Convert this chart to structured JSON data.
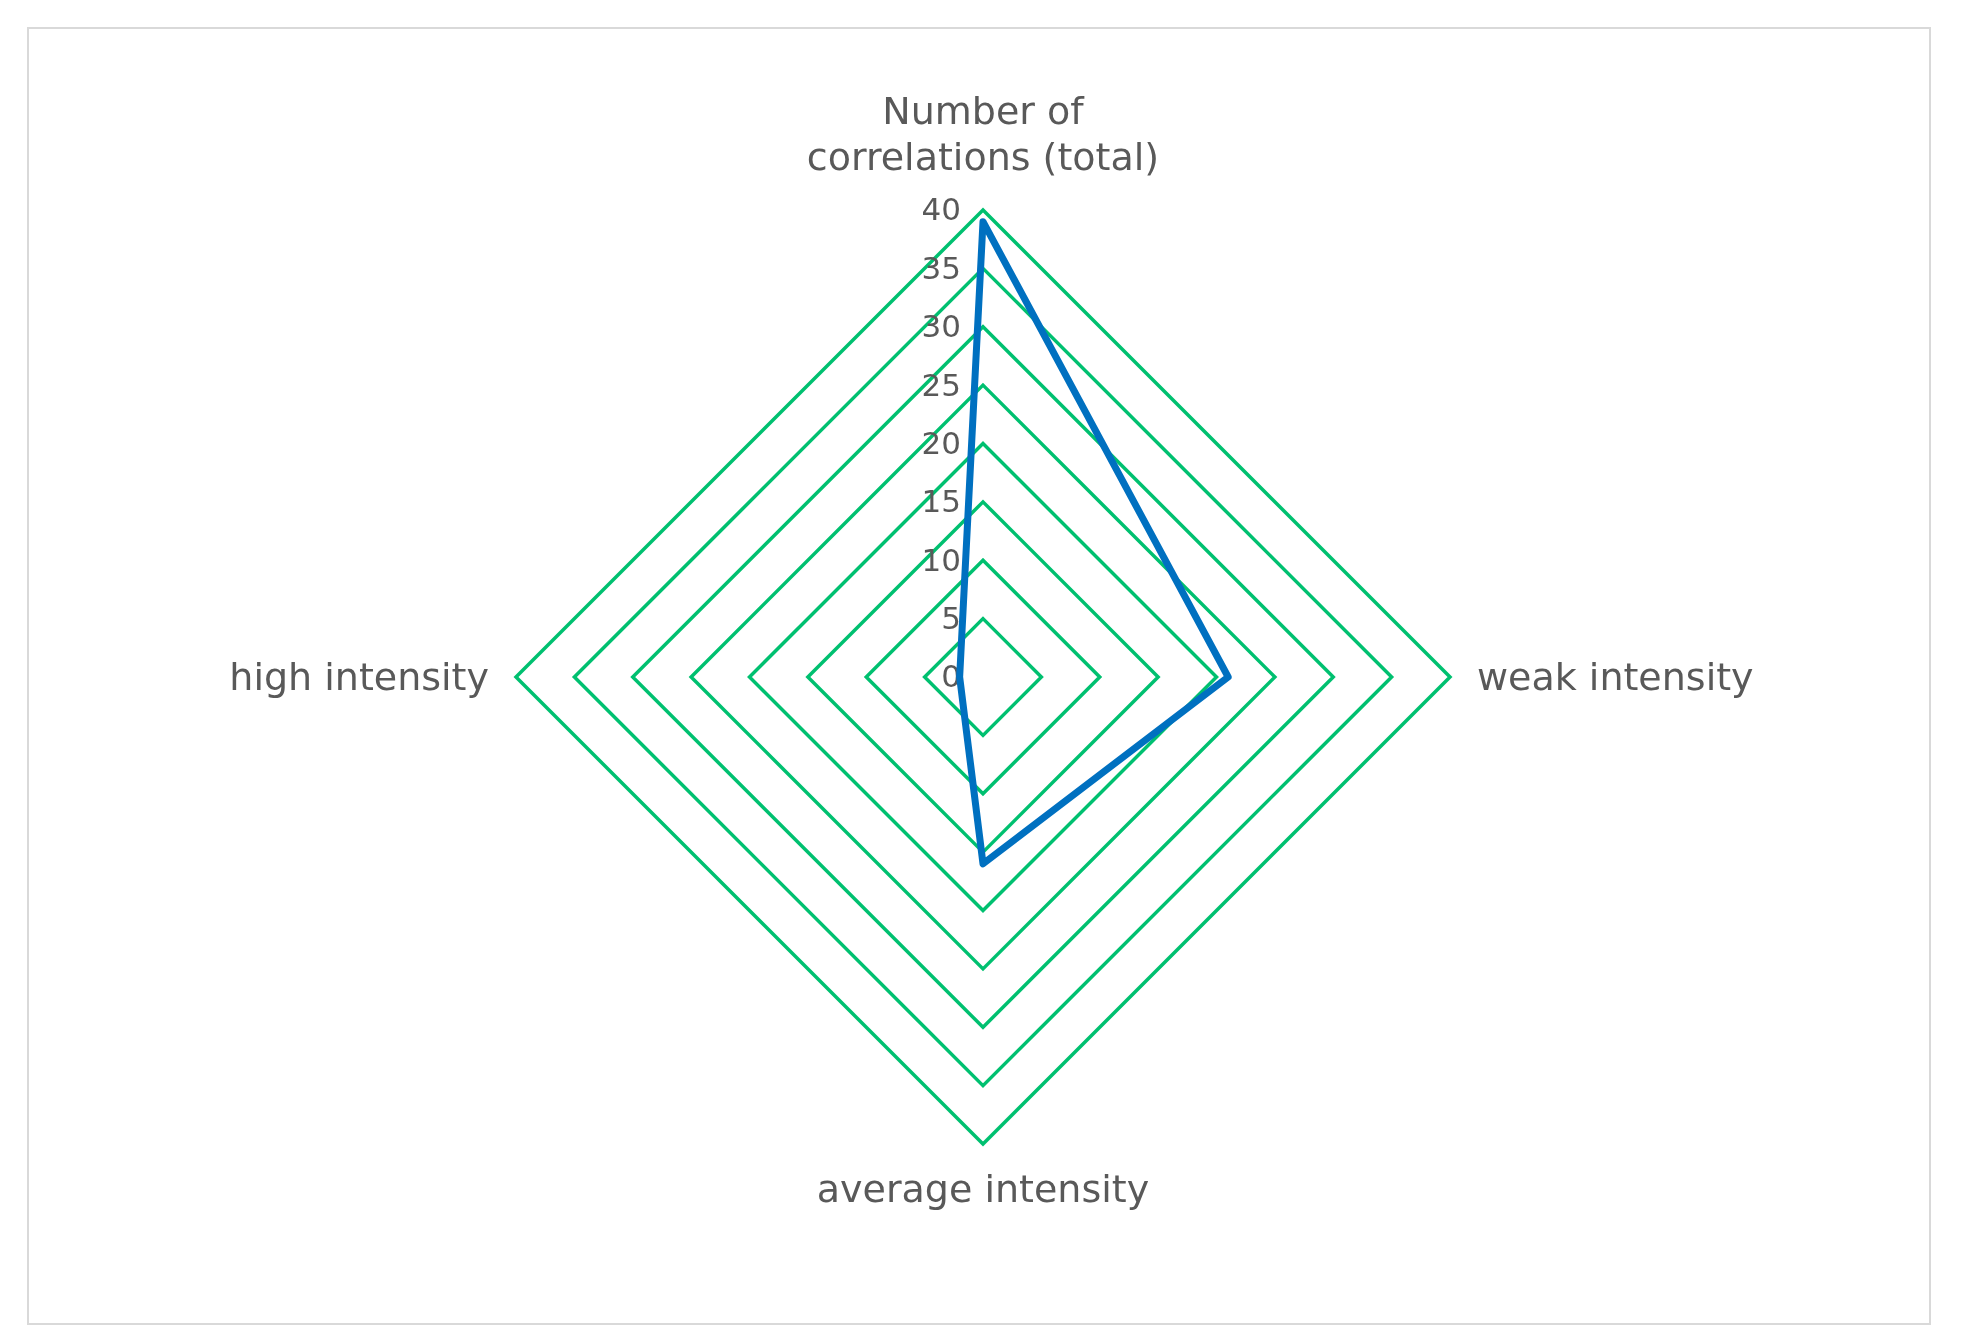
{
  "chart_data": {
    "type": "radar",
    "categories": [
      "Number of correlations (total)",
      "weak intensity",
      "average intensity",
      "high intensity"
    ],
    "series": [
      {
        "color": "#0070c0",
        "values": [
          39,
          21,
          16,
          2
        ]
      }
    ],
    "ylim": [
      0,
      40
    ],
    "yticks": [
      0,
      5,
      10,
      15,
      20,
      25,
      30,
      35,
      40
    ],
    "grid": true
  }
}
